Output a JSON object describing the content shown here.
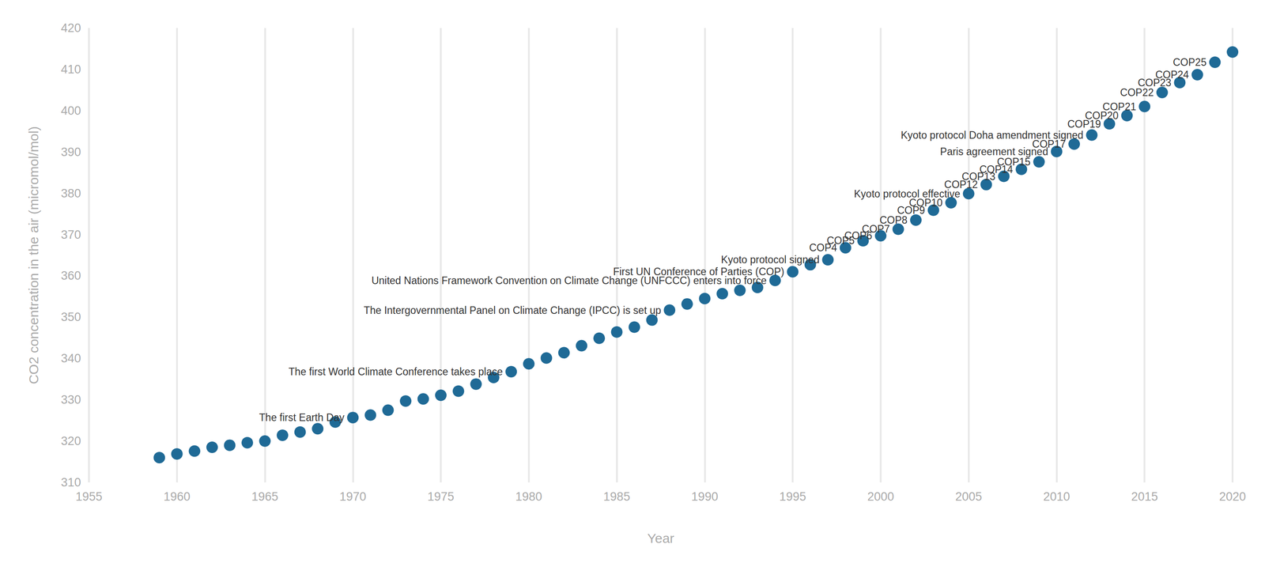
{
  "chart_data": {
    "type": "scatter",
    "x_label": "Year",
    "y_label": "CO2 concentration in the air (micromol/mol)",
    "x": [
      1959,
      1960,
      1961,
      1962,
      1963,
      1964,
      1965,
      1966,
      1967,
      1968,
      1969,
      1970,
      1971,
      1972,
      1973,
      1974,
      1975,
      1976,
      1977,
      1978,
      1979,
      1980,
      1981,
      1982,
      1983,
      1984,
      1985,
      1986,
      1987,
      1988,
      1989,
      1990,
      1991,
      1992,
      1993,
      1994,
      1995,
      1996,
      1997,
      1998,
      1999,
      2000,
      2001,
      2002,
      2003,
      2004,
      2005,
      2006,
      2007,
      2008,
      2009,
      2010,
      2011,
      2012,
      2013,
      2014,
      2015,
      2016,
      2017,
      2018,
      2019,
      2020
    ],
    "values": [
      316.0,
      316.9,
      317.6,
      318.5,
      319.0,
      319.6,
      320.0,
      321.4,
      322.2,
      323.0,
      324.6,
      325.7,
      326.3,
      327.5,
      329.7,
      330.2,
      331.1,
      332.1,
      333.8,
      335.4,
      336.8,
      338.7,
      340.1,
      341.4,
      343.1,
      344.9,
      346.4,
      347.6,
      349.3,
      351.7,
      353.2,
      354.5,
      355.7,
      356.5,
      357.2,
      358.9,
      361.0,
      362.7,
      363.9,
      366.8,
      368.5,
      369.7,
      371.3,
      373.5,
      375.9,
      377.7,
      379.9,
      382.1,
      384.1,
      385.8,
      387.6,
      390.1,
      391.9,
      394.1,
      396.8,
      398.8,
      401.0,
      404.4,
      406.8,
      408.7,
      411.7,
      414.2
    ],
    "annotations": [
      {
        "x": 1970,
        "text": "The first Earth Day"
      },
      {
        "x": 1979,
        "text": "The first World Climate Conference takes place"
      },
      {
        "x": 1988,
        "text": "The Intergovernmental Panel on Climate Change (IPCC) is set up"
      },
      {
        "x": 1994,
        "text": "United Nations Framework Convention on Climate Change (UNFCCC) enters into force"
      },
      {
        "x": 1995,
        "text": "First UN Conference of Parties (COP)"
      },
      {
        "x": 1997,
        "text": "Kyoto protocol signed"
      },
      {
        "x": 1998,
        "text": "COP4"
      },
      {
        "x": 1999,
        "text": "COP5"
      },
      {
        "x": 2000,
        "text": "COP6"
      },
      {
        "x": 2001,
        "text": "COP7"
      },
      {
        "x": 2002,
        "text": "COP8"
      },
      {
        "x": 2003,
        "text": "COP9"
      },
      {
        "x": 2004,
        "text": "COP10"
      },
      {
        "x": 2005,
        "text": "Kyoto protocol effective"
      },
      {
        "x": 2006,
        "text": "COP12"
      },
      {
        "x": 2007,
        "text": "COP13"
      },
      {
        "x": 2008,
        "text": "COP14"
      },
      {
        "x": 2009,
        "text": "COP15"
      },
      {
        "x": 2010,
        "text": "Paris agreement signed"
      },
      {
        "x": 2011,
        "text": "COP17"
      },
      {
        "x": 2012,
        "text": "Kyoto protocol Doha amendment signed"
      },
      {
        "x": 2013,
        "text": "COP19"
      },
      {
        "x": 2014,
        "text": "COP20"
      },
      {
        "x": 2015,
        "text": "COP21"
      },
      {
        "x": 2016,
        "text": "COP22"
      },
      {
        "x": 2017,
        "text": "COP23"
      },
      {
        "x": 2018,
        "text": "COP24"
      },
      {
        "x": 2019,
        "text": "COP25"
      }
    ],
    "color": "#1f6a96",
    "marker": "circle",
    "xlim": [
      1955,
      2020
    ],
    "xticks": [
      1955,
      1960,
      1965,
      1970,
      1975,
      1980,
      1985,
      1990,
      1995,
      2000,
      2005,
      2010,
      2015,
      2020
    ],
    "ylim": [
      310,
      420
    ],
    "yticks": [
      310,
      320,
      330,
      340,
      350,
      360,
      370,
      380,
      390,
      400,
      410,
      420
    ],
    "grid": "x"
  }
}
